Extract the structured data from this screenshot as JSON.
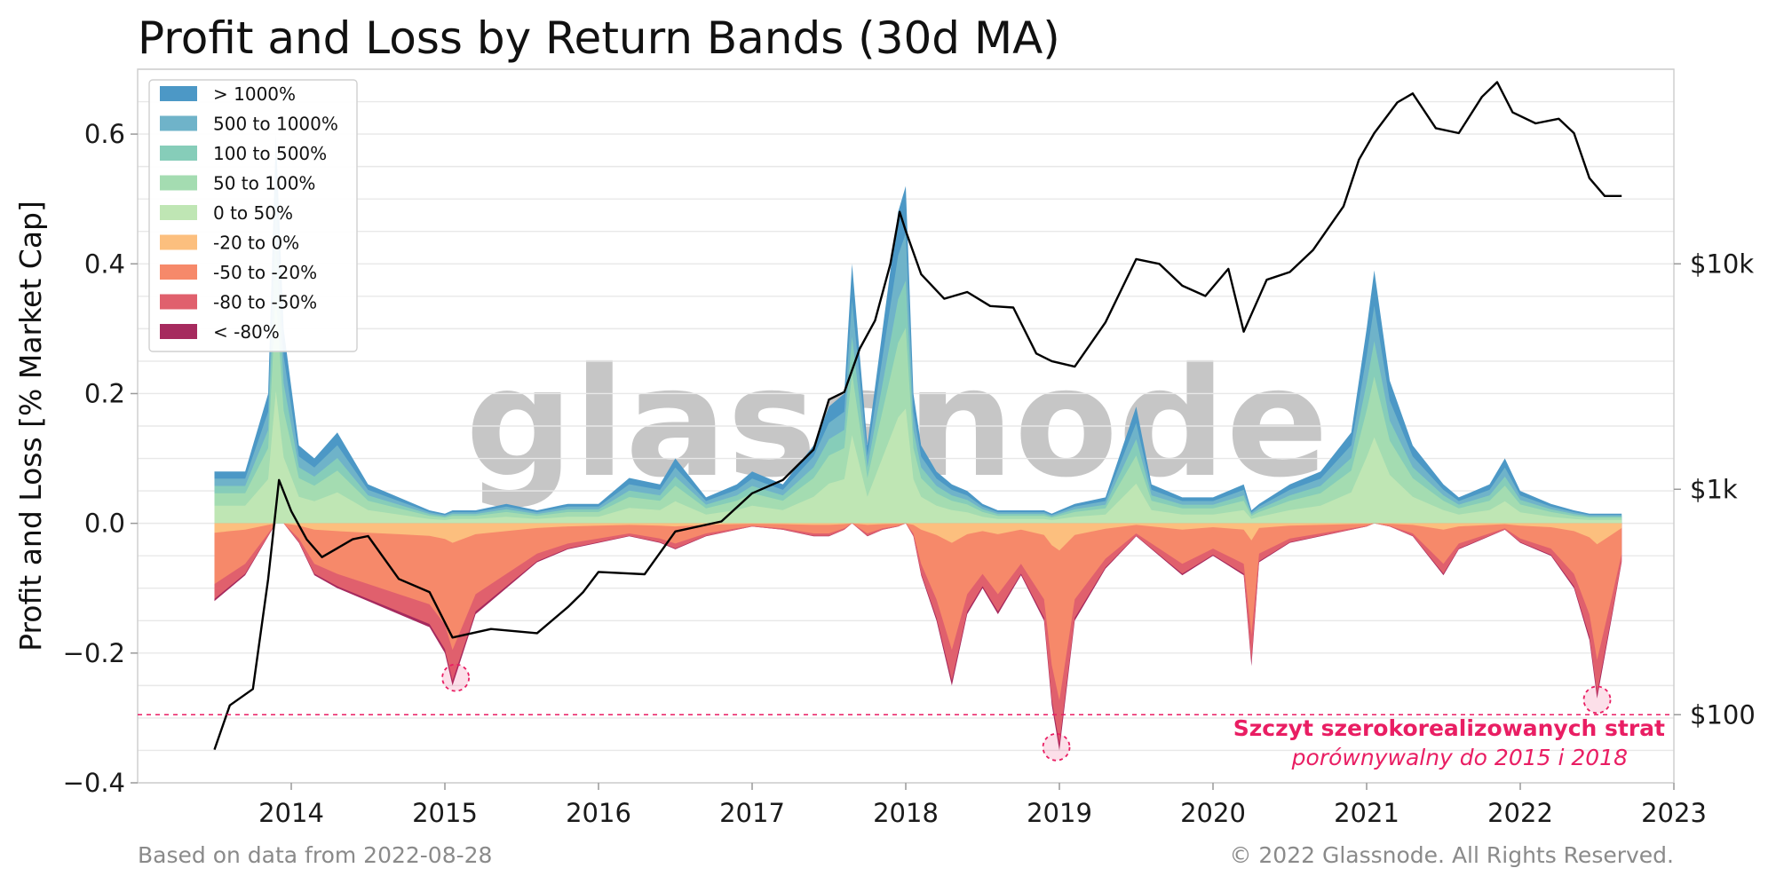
{
  "watermark": "glassnode",
  "footer": {
    "left": "Based on data from 2022-08-28",
    "right": "© 2022 Glassnode. All Rights Reserved."
  },
  "chart_data": {
    "type": "area",
    "title": "Profit and Loss by Return Bands (30d MA)",
    "ylabel": "Profit and Loss [% Market Cap]",
    "xlabel": "",
    "ylim": [
      -0.4,
      0.7
    ],
    "xlim": [
      2013.0,
      2023.0
    ],
    "grid": true,
    "legend_position": "top-left",
    "x_ticks": [
      {
        "value": 2014,
        "label": "2014"
      },
      {
        "value": 2015,
        "label": "2015"
      },
      {
        "value": 2016,
        "label": "2016"
      },
      {
        "value": 2017,
        "label": "2017"
      },
      {
        "value": 2018,
        "label": "2018"
      },
      {
        "value": 2019,
        "label": "2019"
      },
      {
        "value": 2020,
        "label": "2020"
      },
      {
        "value": 2021,
        "label": "2021"
      },
      {
        "value": 2022,
        "label": "2022"
      },
      {
        "value": 2023,
        "label": "2023"
      }
    ],
    "y_ticks": [
      {
        "value": 0.6,
        "label": "0.6"
      },
      {
        "value": 0.4,
        "label": "0.4"
      },
      {
        "value": 0.2,
        "label": "0.2"
      },
      {
        "value": 0.0,
        "label": "0.0"
      },
      {
        "value": -0.2,
        "label": "−0.2"
      },
      {
        "value": -0.4,
        "label": "−0.4"
      }
    ],
    "y2_scale": "log",
    "y2_ticks": [
      {
        "value": 100,
        "label": "$100"
      },
      {
        "value": 1000,
        "label": "$1k"
      },
      {
        "value": 10000,
        "label": "$10k"
      }
    ],
    "bands": [
      {
        "name": "> 1000%",
        "color": "#4c98c6",
        "side": "profit"
      },
      {
        "name": "500 to 1000%",
        "color": "#6fb3c9",
        "side": "profit"
      },
      {
        "name": "100 to 500%",
        "color": "#86cdb9",
        "side": "profit"
      },
      {
        "name": "50 to 100%",
        "color": "#a4dcb1",
        "side": "profit"
      },
      {
        "name": "0 to 50%",
        "color": "#bfe6b4",
        "side": "profit"
      },
      {
        "name": "-20 to 0%",
        "color": "#fcbf7e",
        "side": "loss"
      },
      {
        "name": "-50 to -20%",
        "color": "#f6896a",
        "side": "loss"
      },
      {
        "name": "-80 to -50%",
        "color": "#e0606d",
        "side": "loss"
      },
      {
        "name": "< -80%",
        "color": "#a62a5e",
        "side": "loss"
      }
    ],
    "x": [
      2013.5,
      2013.7,
      2013.85,
      2013.9,
      2013.95,
      2014.05,
      2014.15,
      2014.3,
      2014.5,
      2014.7,
      2014.9,
      2015.0,
      2015.05,
      2015.2,
      2015.4,
      2015.6,
      2015.8,
      2016.0,
      2016.2,
      2016.4,
      2016.5,
      2016.7,
      2016.9,
      2017.0,
      2017.2,
      2017.4,
      2017.5,
      2017.6,
      2017.65,
      2017.75,
      2017.85,
      2017.95,
      2018.0,
      2018.05,
      2018.1,
      2018.2,
      2018.3,
      2018.4,
      2018.5,
      2018.6,
      2018.75,
      2018.9,
      2018.95,
      2019.0,
      2019.1,
      2019.3,
      2019.5,
      2019.6,
      2019.8,
      2020.0,
      2020.2,
      2020.25,
      2020.3,
      2020.5,
      2020.7,
      2020.9,
      2021.0,
      2021.05,
      2021.15,
      2021.3,
      2021.5,
      2021.6,
      2021.8,
      2021.9,
      2022.0,
      2022.2,
      2022.35,
      2022.45,
      2022.5,
      2022.6,
      2022.66
    ],
    "profit": [
      0.08,
      0.08,
      0.2,
      0.6,
      0.3,
      0.12,
      0.1,
      0.14,
      0.06,
      0.04,
      0.02,
      0.015,
      0.02,
      0.02,
      0.03,
      0.02,
      0.03,
      0.03,
      0.07,
      0.06,
      0.1,
      0.04,
      0.06,
      0.08,
      0.06,
      0.12,
      0.18,
      0.2,
      0.4,
      0.12,
      0.3,
      0.48,
      0.52,
      0.2,
      0.12,
      0.08,
      0.06,
      0.05,
      0.03,
      0.02,
      0.02,
      0.02,
      0.015,
      0.02,
      0.03,
      0.04,
      0.18,
      0.06,
      0.04,
      0.04,
      0.06,
      0.02,
      0.03,
      0.06,
      0.08,
      0.14,
      0.3,
      0.39,
      0.22,
      0.12,
      0.06,
      0.04,
      0.06,
      0.1,
      0.05,
      0.03,
      0.02,
      0.015,
      0.015,
      0.015,
      0.015
    ],
    "loss": [
      -0.12,
      -0.08,
      -0.02,
      0.0,
      0.0,
      -0.03,
      -0.08,
      -0.1,
      -0.12,
      -0.14,
      -0.16,
      -0.2,
      -0.25,
      -0.14,
      -0.1,
      -0.06,
      -0.04,
      -0.03,
      -0.02,
      -0.03,
      -0.04,
      -0.02,
      -0.01,
      -0.005,
      -0.01,
      -0.02,
      -0.02,
      -0.01,
      0.0,
      -0.02,
      -0.01,
      -0.005,
      0.0,
      -0.02,
      -0.08,
      -0.15,
      -0.25,
      -0.14,
      -0.1,
      -0.14,
      -0.08,
      -0.15,
      -0.28,
      -0.35,
      -0.15,
      -0.07,
      -0.02,
      -0.04,
      -0.08,
      -0.05,
      -0.08,
      -0.22,
      -0.06,
      -0.03,
      -0.02,
      -0.01,
      -0.005,
      0.0,
      -0.005,
      -0.02,
      -0.08,
      -0.04,
      -0.02,
      -0.01,
      -0.03,
      -0.05,
      -0.1,
      -0.18,
      -0.27,
      -0.14,
      -0.06
    ],
    "price_series": {
      "x": [
        2013.5,
        2013.6,
        2013.75,
        2013.85,
        2013.92,
        2014.0,
        2014.1,
        2014.2,
        2014.4,
        2014.5,
        2014.7,
        2014.9,
        2015.05,
        2015.3,
        2015.6,
        2015.8,
        2015.9,
        2016.0,
        2016.3,
        2016.5,
        2016.8,
        2017.0,
        2017.2,
        2017.4,
        2017.5,
        2017.6,
        2017.7,
        2017.8,
        2017.9,
        2017.96,
        2018.0,
        2018.1,
        2018.25,
        2018.4,
        2018.55,
        2018.7,
        2018.85,
        2018.95,
        2019.1,
        2019.3,
        2019.5,
        2019.65,
        2019.8,
        2019.95,
        2020.1,
        2020.2,
        2020.35,
        2020.5,
        2020.65,
        2020.85,
        2020.95,
        2021.05,
        2021.2,
        2021.3,
        2021.45,
        2021.6,
        2021.75,
        2021.85,
        2021.95,
        2022.1,
        2022.25,
        2022.35,
        2022.45,
        2022.55,
        2022.66
      ],
      "y": [
        70,
        110,
        130,
        400,
        1100,
        800,
        600,
        500,
        600,
        620,
        400,
        350,
        220,
        240,
        230,
        300,
        350,
        430,
        420,
        650,
        720,
        960,
        1100,
        1500,
        2500,
        2700,
        4200,
        5600,
        10000,
        17000,
        14000,
        9000,
        7000,
        7500,
        6500,
        6400,
        4000,
        3700,
        3500,
        5500,
        10500,
        10000,
        8000,
        7200,
        9500,
        5000,
        8500,
        9200,
        11500,
        18000,
        29000,
        38000,
        52000,
        57000,
        40000,
        38000,
        55000,
        64000,
        47000,
        42000,
        44000,
        38000,
        24000,
        20000,
        20000
      ]
    },
    "annotations": {
      "threshold": -0.295,
      "line1": "Szczyt szerokorealizowanych strat",
      "line2": "porównywalny do 2015 i 2018",
      "markers": [
        {
          "x": 2015.07,
          "y": -0.238
        },
        {
          "x": 2018.98,
          "y": -0.345
        },
        {
          "x": 2022.5,
          "y": -0.272
        }
      ]
    }
  }
}
